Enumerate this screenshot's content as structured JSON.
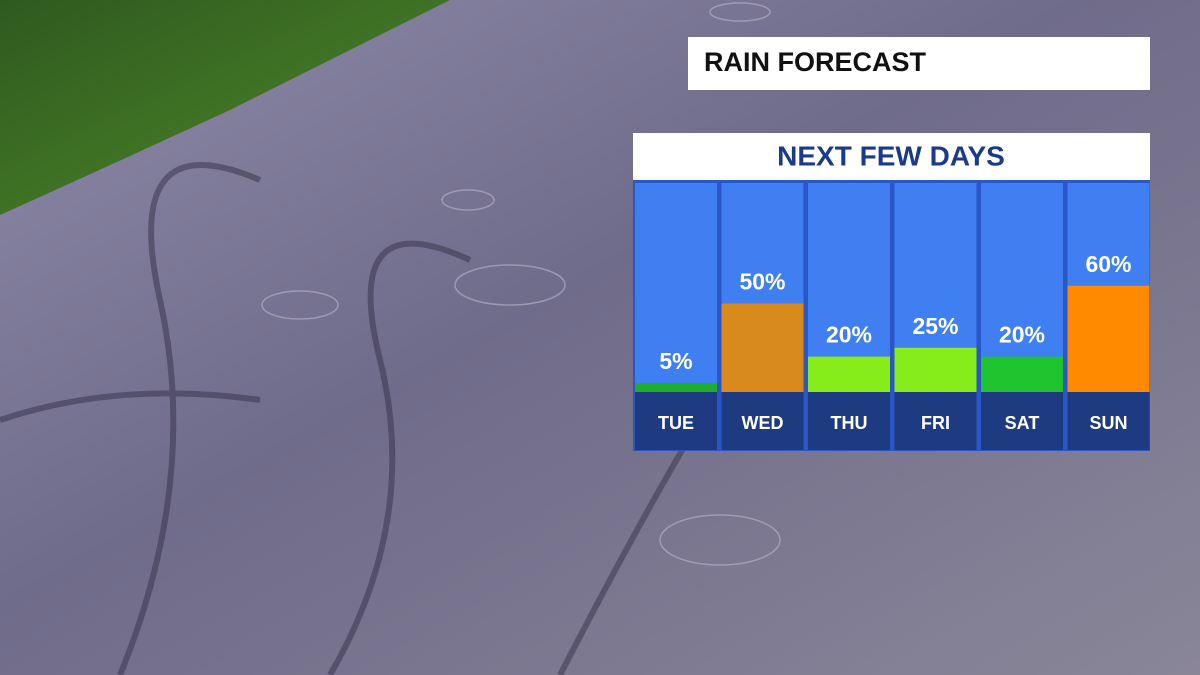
{
  "chart_data": {
    "type": "bar",
    "title": "RAIN FORECAST",
    "subtitle": "NEXT FEW DAYS",
    "categories": [
      "TUE",
      "WED",
      "THU",
      "FRI",
      "SAT",
      "SUN"
    ],
    "values": [
      5,
      50,
      20,
      25,
      20,
      60
    ],
    "value_labels": [
      "5%",
      "50%",
      "20%",
      "25%",
      "20%",
      "60%"
    ],
    "colors": [
      "#1fae2b",
      "#d98a1c",
      "#86ec1a",
      "#86ec1a",
      "#1fc42f",
      "#ff8a00"
    ]
  }
}
